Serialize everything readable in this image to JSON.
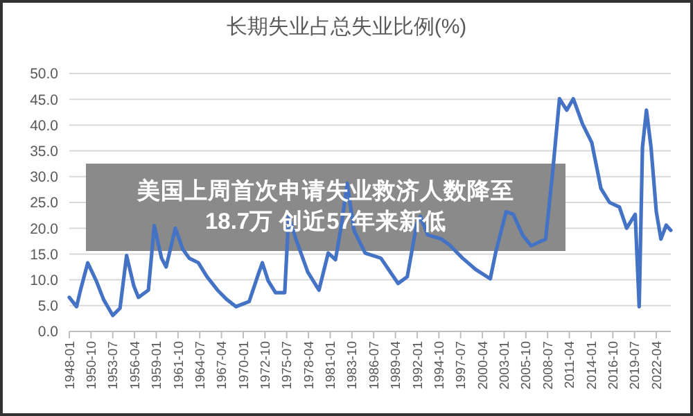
{
  "chart_data": {
    "type": "line",
    "title": "长期失业占总失业比例(%)",
    "annotations": [
      "美国上周首次申请失业救济人数降至18.7万 创近57年来新低"
    ],
    "x": [
      "1948-01",
      "1948-12",
      "1949-06",
      "1950-05",
      "1951-06",
      "1952-05",
      "1953-07",
      "1954-06",
      "1955-04",
      "1956-03",
      "1956-10",
      "1958-01",
      "1958-10",
      "1959-09",
      "1960-04",
      "1961-06",
      "1962-05",
      "1963-03",
      "1964-05",
      "1965-06",
      "1966-10",
      "1967-12",
      "1969-02",
      "1970-10",
      "1972-01",
      "1972-06",
      "1973-03",
      "1974-02",
      "1975-04",
      "1975-10",
      "1976-09",
      "1978-03",
      "1979-08",
      "1980-10",
      "1981-09",
      "1982-06",
      "1983-03",
      "1984-01",
      "1985-06",
      "1987-06",
      "1989-08",
      "1990-10",
      "1991-12",
      "1992-06",
      "1993-05",
      "1995-02",
      "1996-01",
      "1997-10",
      "1999-06",
      "2001-04",
      "2001-12",
      "2003-04",
      "2004-03",
      "2005-05",
      "2006-06",
      "2008-04",
      "2009-03",
      "2010-01",
      "2010-12",
      "2011-10",
      "2012-12",
      "2014-02",
      "2015-04",
      "2016-05",
      "2017-08",
      "2018-07",
      "2019-08",
      "2020-02",
      "2020-07",
      "2021-01",
      "2021-08",
      "2022-04",
      "2022-11",
      "2023-07",
      "2024-02"
    ],
    "series": [
      {
        "color": "#4472c4",
        "values": [
          6.6,
          4.8,
          8,
          13.3,
          9.8,
          6.2,
          3.1,
          4.5,
          14.7,
          8.8,
          6.6,
          8,
          20.5,
          14.2,
          12.5,
          20,
          16,
          14.2,
          13.3,
          10.6,
          8,
          6.2,
          4.8,
          5.8,
          11.5,
          13.3,
          9.8,
          7.5,
          7.5,
          22.3,
          17.9,
          11.5,
          8,
          15.2,
          13.9,
          20.6,
          28.7,
          19.6,
          15.2,
          14.2,
          9.3,
          10.6,
          20.6,
          22.3,
          18.7,
          17.9,
          16.9,
          14.2,
          12,
          10.2,
          15.2,
          23.2,
          22.7,
          18.7,
          16.6,
          17.9,
          31.3,
          45.1,
          42.9,
          45.1,
          40.2,
          36.6,
          27.7,
          25,
          24.1,
          20,
          22.7,
          4.8,
          35.7,
          42.9,
          35.7,
          23.2,
          17.9,
          20.6,
          19.6
        ]
      }
    ],
    "xlim": [
      "1948-01",
      "2024-02"
    ],
    "xticks": [
      {
        "value": "1948-01",
        "label": "1948-01"
      },
      {
        "value": "1950-10",
        "label": "1950-10"
      },
      {
        "value": "1953-07",
        "label": "1953-07"
      },
      {
        "value": "1956-04",
        "label": "1956-04"
      },
      {
        "value": "1959-01",
        "label": "1959-01"
      },
      {
        "value": "1961-10",
        "label": "1961-10"
      },
      {
        "value": "1964-07",
        "label": "1964-07"
      },
      {
        "value": "1967-04",
        "label": "1967-04"
      },
      {
        "value": "1970-01",
        "label": "1970-01"
      },
      {
        "value": "1972-10",
        "label": "1972-10"
      },
      {
        "value": "1975-07",
        "label": "1975-07"
      },
      {
        "value": "1978-04",
        "label": "1978-04"
      },
      {
        "value": "1981-01",
        "label": "1981-01"
      },
      {
        "value": "1983-10",
        "label": "1983-10"
      },
      {
        "value": "1986-07",
        "label": "1986-07"
      },
      {
        "value": "1989-04",
        "label": "1989-04"
      },
      {
        "value": "1992-01",
        "label": "1992-01"
      },
      {
        "value": "1994-10",
        "label": "1994-10"
      },
      {
        "value": "1997-07",
        "label": "1997-07"
      },
      {
        "value": "2000-04",
        "label": "2000-04"
      },
      {
        "value": "2003-01",
        "label": "2003-01"
      },
      {
        "value": "2005-10",
        "label": "2005-10"
      },
      {
        "value": "2008-07",
        "label": "2008-07"
      },
      {
        "value": "2011-04",
        "label": "2011-04"
      },
      {
        "value": "2014-01",
        "label": "2014-01"
      },
      {
        "value": "2016-10",
        "label": "2016-10"
      },
      {
        "value": "2019-07",
        "label": "2019-07"
      },
      {
        "value": "2022-04",
        "label": "2022-04"
      }
    ],
    "ylim": [
      0,
      50
    ],
    "yticks": [
      {
        "value": 0,
        "label": "0.0"
      },
      {
        "value": 5,
        "label": "5.0"
      },
      {
        "value": 10,
        "label": "10.0"
      },
      {
        "value": 15,
        "label": "15.0"
      },
      {
        "value": 20,
        "label": "20.0"
      },
      {
        "value": 25,
        "label": "25.0"
      },
      {
        "value": 30,
        "label": "30.0"
      },
      {
        "value": 35,
        "label": "35.0"
      },
      {
        "value": 40,
        "label": "40.0"
      },
      {
        "value": 45,
        "label": "45.0"
      },
      {
        "value": 50,
        "label": "50.0"
      }
    ],
    "grid": "y",
    "marker": "none",
    "line_style": "solid"
  }
}
